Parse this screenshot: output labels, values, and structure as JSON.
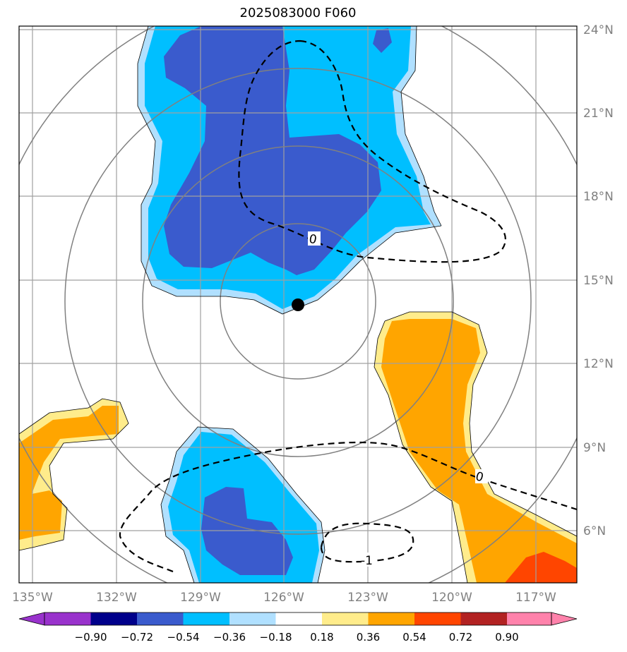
{
  "title": "2025083000 F060",
  "map": {
    "lat_labels": [
      "24°N",
      "21°N",
      "18°N",
      "15°N",
      "12°N",
      "9°N",
      "6°N"
    ],
    "lon_labels": [
      "135°W",
      "132°W",
      "129°W",
      "126°W",
      "123°W",
      "120°W",
      "117°W"
    ],
    "contour_labels": [
      "0",
      "0",
      "-1"
    ],
    "center_marker": "storm-center",
    "colors": {
      "gridline": "#a0a0a0",
      "range_ring": "#808080",
      "frame": "#000000",
      "contour": "#000000"
    }
  },
  "colorbar": {
    "tick_labels": [
      "−0.90",
      "−0.72",
      "−0.54",
      "−0.36",
      "−0.18",
      "0.18",
      "0.36",
      "0.54",
      "0.72",
      "0.90"
    ],
    "colors": [
      "#9932cc",
      "#00008b",
      "#3a5bcd",
      "#00bfff",
      "#b0e0ff",
      "#ffffff",
      "#ffec8b",
      "#ffa500",
      "#ff4500",
      "#b22222",
      "#ff82ab"
    ]
  }
}
